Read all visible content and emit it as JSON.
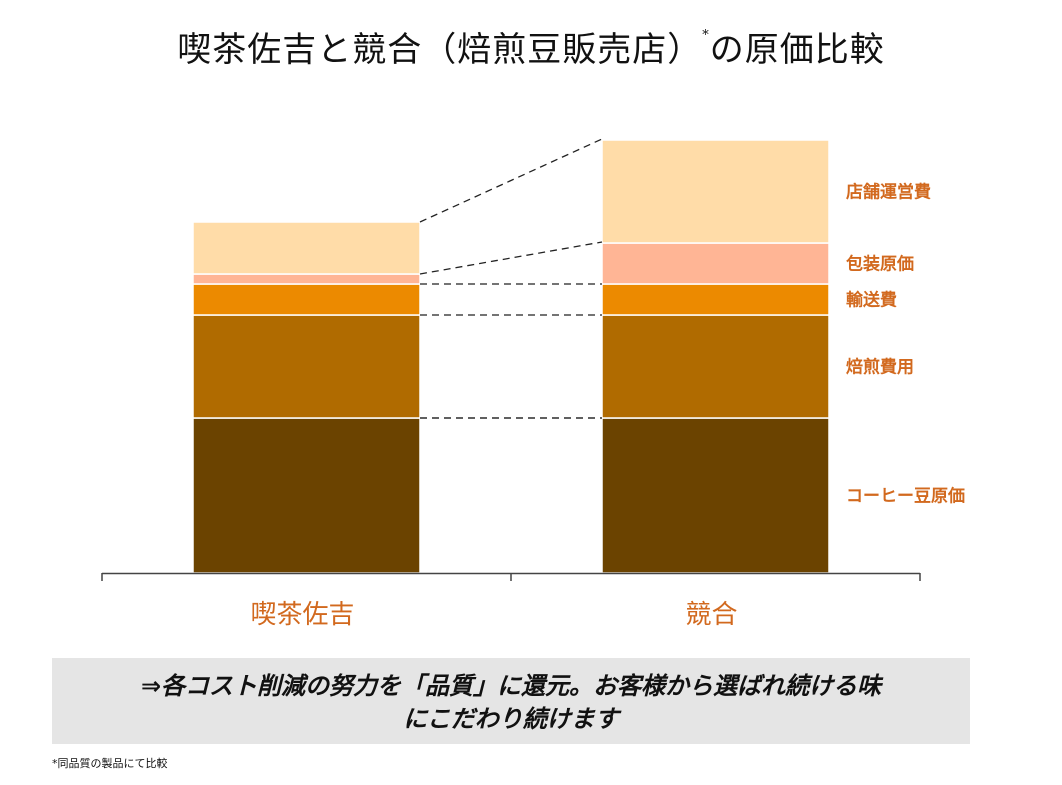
{
  "title": {
    "text": "喫茶佐吉と競合（焙煎豆販売店）",
    "marker": "*",
    "suffix": "の原価比較"
  },
  "chart_data": {
    "type": "bar",
    "stacked": true,
    "categories": [
      "喫茶佐吉",
      "競合"
    ],
    "series": [
      {
        "name": "コーヒー豆原価",
        "color": "#6b4300",
        "values": [
          155,
          155
        ]
      },
      {
        "name": "焙煎費用",
        "color": "#b06b00",
        "values": [
          103,
          103
        ]
      },
      {
        "name": "輸送費",
        "color": "#ec8a00",
        "values": [
          31,
          31
        ]
      },
      {
        "name": "包装原価",
        "color": "#ffb595",
        "values": [
          10,
          41
        ]
      },
      {
        "name": "店舗運営費",
        "color": "#ffdca8",
        "values": [
          52,
          103
        ]
      }
    ],
    "ylim": [
      0,
      440
    ],
    "grid": false,
    "legend": "right",
    "label_color": "#d2691e"
  },
  "conclusion": {
    "line1": "⇒各コスト削減の努力を「品質」に還元。お客様から選ばれ続ける味",
    "line2": "にこだわり続けます"
  },
  "footnote": "*同品質の製品にて比較"
}
